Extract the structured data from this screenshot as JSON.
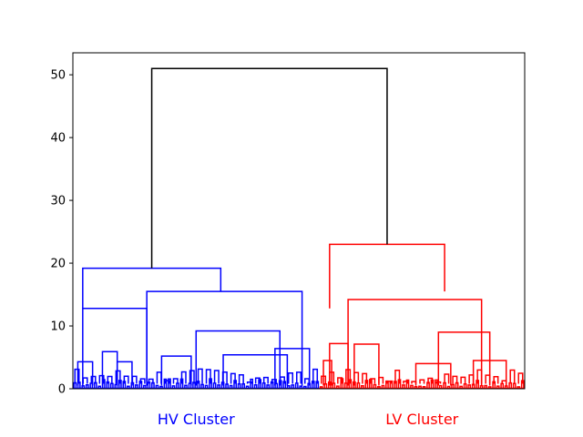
{
  "chart_data": {
    "type": "dendrogram",
    "ylim": [
      0,
      53.5
    ],
    "yticks": [
      0,
      10,
      20,
      30,
      40,
      50
    ],
    "grid": false,
    "legend": "none",
    "root": {
      "height": 51,
      "color": "#000000"
    },
    "clusters": [
      {
        "label": "HV Cluster",
        "color": "#0000ff",
        "leaf_count": 120,
        "merge_height": 19.2,
        "merges": [
          {
            "left": 0.04,
            "right": 0.6,
            "height": 19.2
          },
          {
            "left": 0.04,
            "right": 0.3,
            "height": 12.8
          },
          {
            "left": 0.3,
            "right": 0.93,
            "height": 15.5
          },
          {
            "left": 0.5,
            "right": 0.84,
            "height": 9.2
          },
          {
            "left": 0.12,
            "right": 0.18,
            "height": 5.9
          },
          {
            "left": 0.36,
            "right": 0.48,
            "height": 5.2
          },
          {
            "left": 0.61,
            "right": 0.87,
            "height": 5.4
          },
          {
            "left": 0.82,
            "right": 0.96,
            "height": 6.4
          },
          {
            "left": 0.02,
            "right": 0.08,
            "height": 4.3
          },
          {
            "left": 0.18,
            "right": 0.24,
            "height": 4.3
          }
        ]
      },
      {
        "label": "LV Cluster",
        "color": "#ff0000",
        "leaf_count": 100,
        "merge_height": 23,
        "merges": [
          {
            "left": 0.05,
            "right": 0.61,
            "height": 23
          },
          {
            "left": 0.05,
            "right": 0.14,
            "height": 7.2
          },
          {
            "left": 0.14,
            "right": 0.79,
            "height": 14.2
          },
          {
            "left": 0.17,
            "right": 0.29,
            "height": 7.1
          },
          {
            "left": 0.58,
            "right": 0.83,
            "height": 9.0
          },
          {
            "left": 0.47,
            "right": 0.64,
            "height": 4.0
          },
          {
            "left": 0.75,
            "right": 0.91,
            "height": 4.5
          },
          {
            "left": 0.02,
            "right": 0.06,
            "height": 4.5
          }
        ]
      }
    ]
  }
}
